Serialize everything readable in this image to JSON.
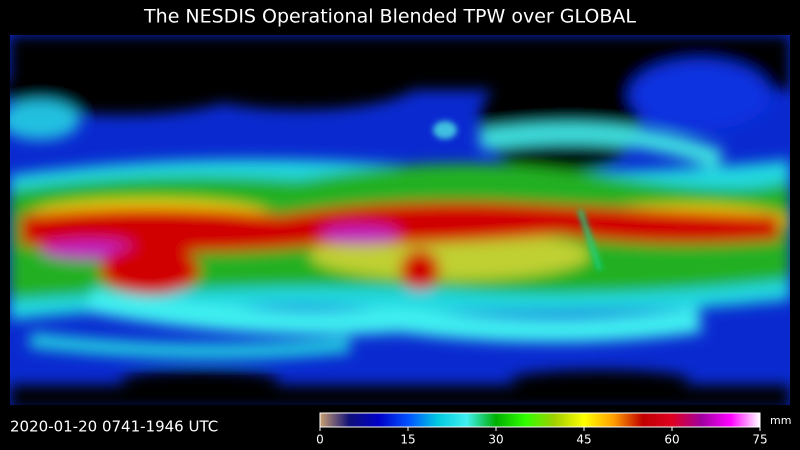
{
  "title": "The NESDIS Operational Blended TPW over GLOBAL",
  "timestamp": "2020-01-20  0741-1946  UTC",
  "colorbar": {
    "ticks": [
      0,
      15,
      30,
      45,
      60,
      75
    ],
    "unit": "mm",
    "colors": [
      "#c8a070",
      "#10107a",
      "#0000c8",
      "#0050ff",
      "#00c8e0",
      "#40f0f0",
      "#00b000",
      "#30ff00",
      "#a0d000",
      "#ffff00",
      "#ffa000",
      "#c00000",
      "#e00020",
      "#a000a0",
      "#ff00ff",
      "#ffffff"
    ]
  }
}
